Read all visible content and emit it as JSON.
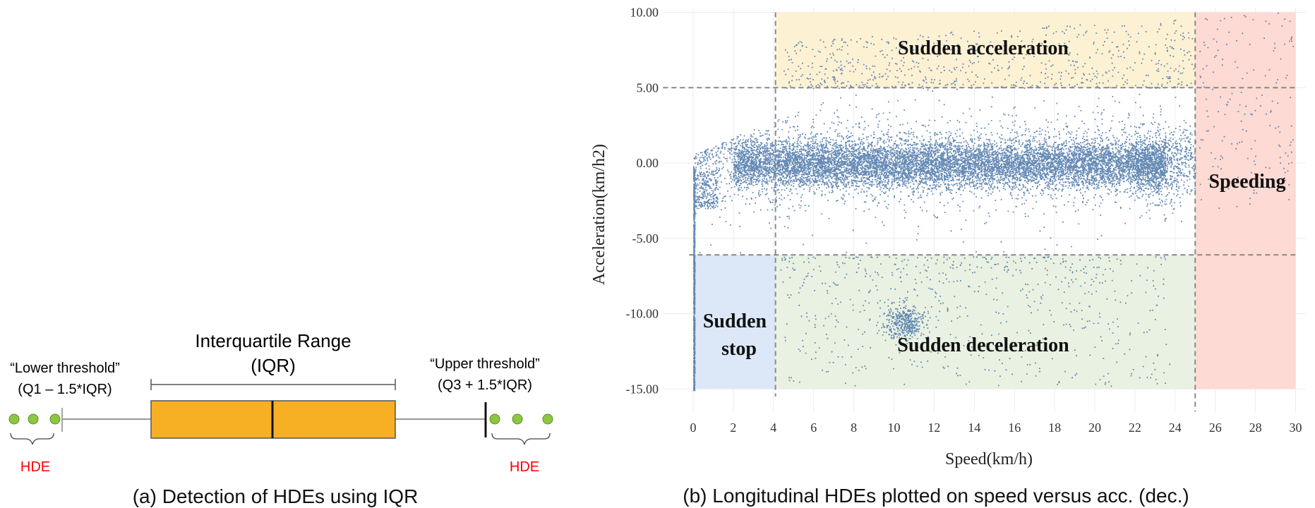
{
  "panel_a": {
    "iqr_title_line1": "Interquartile Range",
    "iqr_title_line2": "(IQR)",
    "lower_label_line1": "“Lower threshold”",
    "lower_label_line2": "(Q1 – 1.5*IQR)",
    "upper_label_line1": "“Upper threshold”",
    "upper_label_line2": "(Q3 + 1.5*IQR)",
    "hde_left": "HDE",
    "hde_right": "HDE",
    "caption": "(a) Detection of HDEs using IQR",
    "colors": {
      "box": "#F7B023",
      "point": "#8DC63F",
      "hde_text": "#FF0000"
    }
  },
  "panel_b": {
    "caption": "(b) Longitudinal HDEs plotted on speed versus acc. (dec.)",
    "colors": {
      "points": "#4A76A8",
      "sudden_acceleration": "#FDF1D4",
      "sudden_deceleration": "#E9F1E2",
      "sudden_stop": "#DCE8F8",
      "speeding": "#FDDAD3",
      "threshold_line": "#888888"
    }
  },
  "chart_data": {
    "type": "scatter",
    "xlabel": "Speed(km/h)",
    "ylabel": "Acceleration(km/h2)",
    "xlim": [
      -1.5,
      30.5
    ],
    "ylim": [
      -16.5,
      10.3
    ],
    "x_ticks": [
      0,
      2,
      4,
      6,
      8,
      10,
      12,
      14,
      16,
      18,
      20,
      22,
      24,
      26,
      28,
      30
    ],
    "y_ticks": [
      "10.00",
      "5.00",
      "0.00",
      "-5.00",
      "-10.00",
      "-15.00"
    ],
    "y_tick_values": [
      10,
      5,
      0,
      -5,
      -10,
      -15
    ],
    "grid": true,
    "thresholds": {
      "speed_low": 4.1,
      "speed_high": 25.0,
      "acc_high": 5.0,
      "acc_low": -6.1
    },
    "regions": [
      {
        "label": "Sudden acceleration",
        "x": [
          4.1,
          25.0
        ],
        "y": [
          5.0,
          10.0
        ]
      },
      {
        "label_line1": "Sudden",
        "label_line2": "stop",
        "x": [
          0,
          4.1
        ],
        "y": [
          -15.0,
          -6.1
        ]
      },
      {
        "label": "Sudden deceleration",
        "x": [
          4.1,
          25.0
        ],
        "y": [
          -15.0,
          -6.1
        ]
      },
      {
        "label": "Speeding",
        "x": [
          25.0,
          30.0
        ],
        "y": [
          -15.0,
          10.0
        ]
      }
    ],
    "density": {
      "main_cluster": {
        "x_range": [
          0,
          24.5
        ],
        "y_range": [
          -6,
          5
        ]
      },
      "dense_cluster_center": {
        "x": 10.5,
        "y": -10.5
      }
    }
  }
}
